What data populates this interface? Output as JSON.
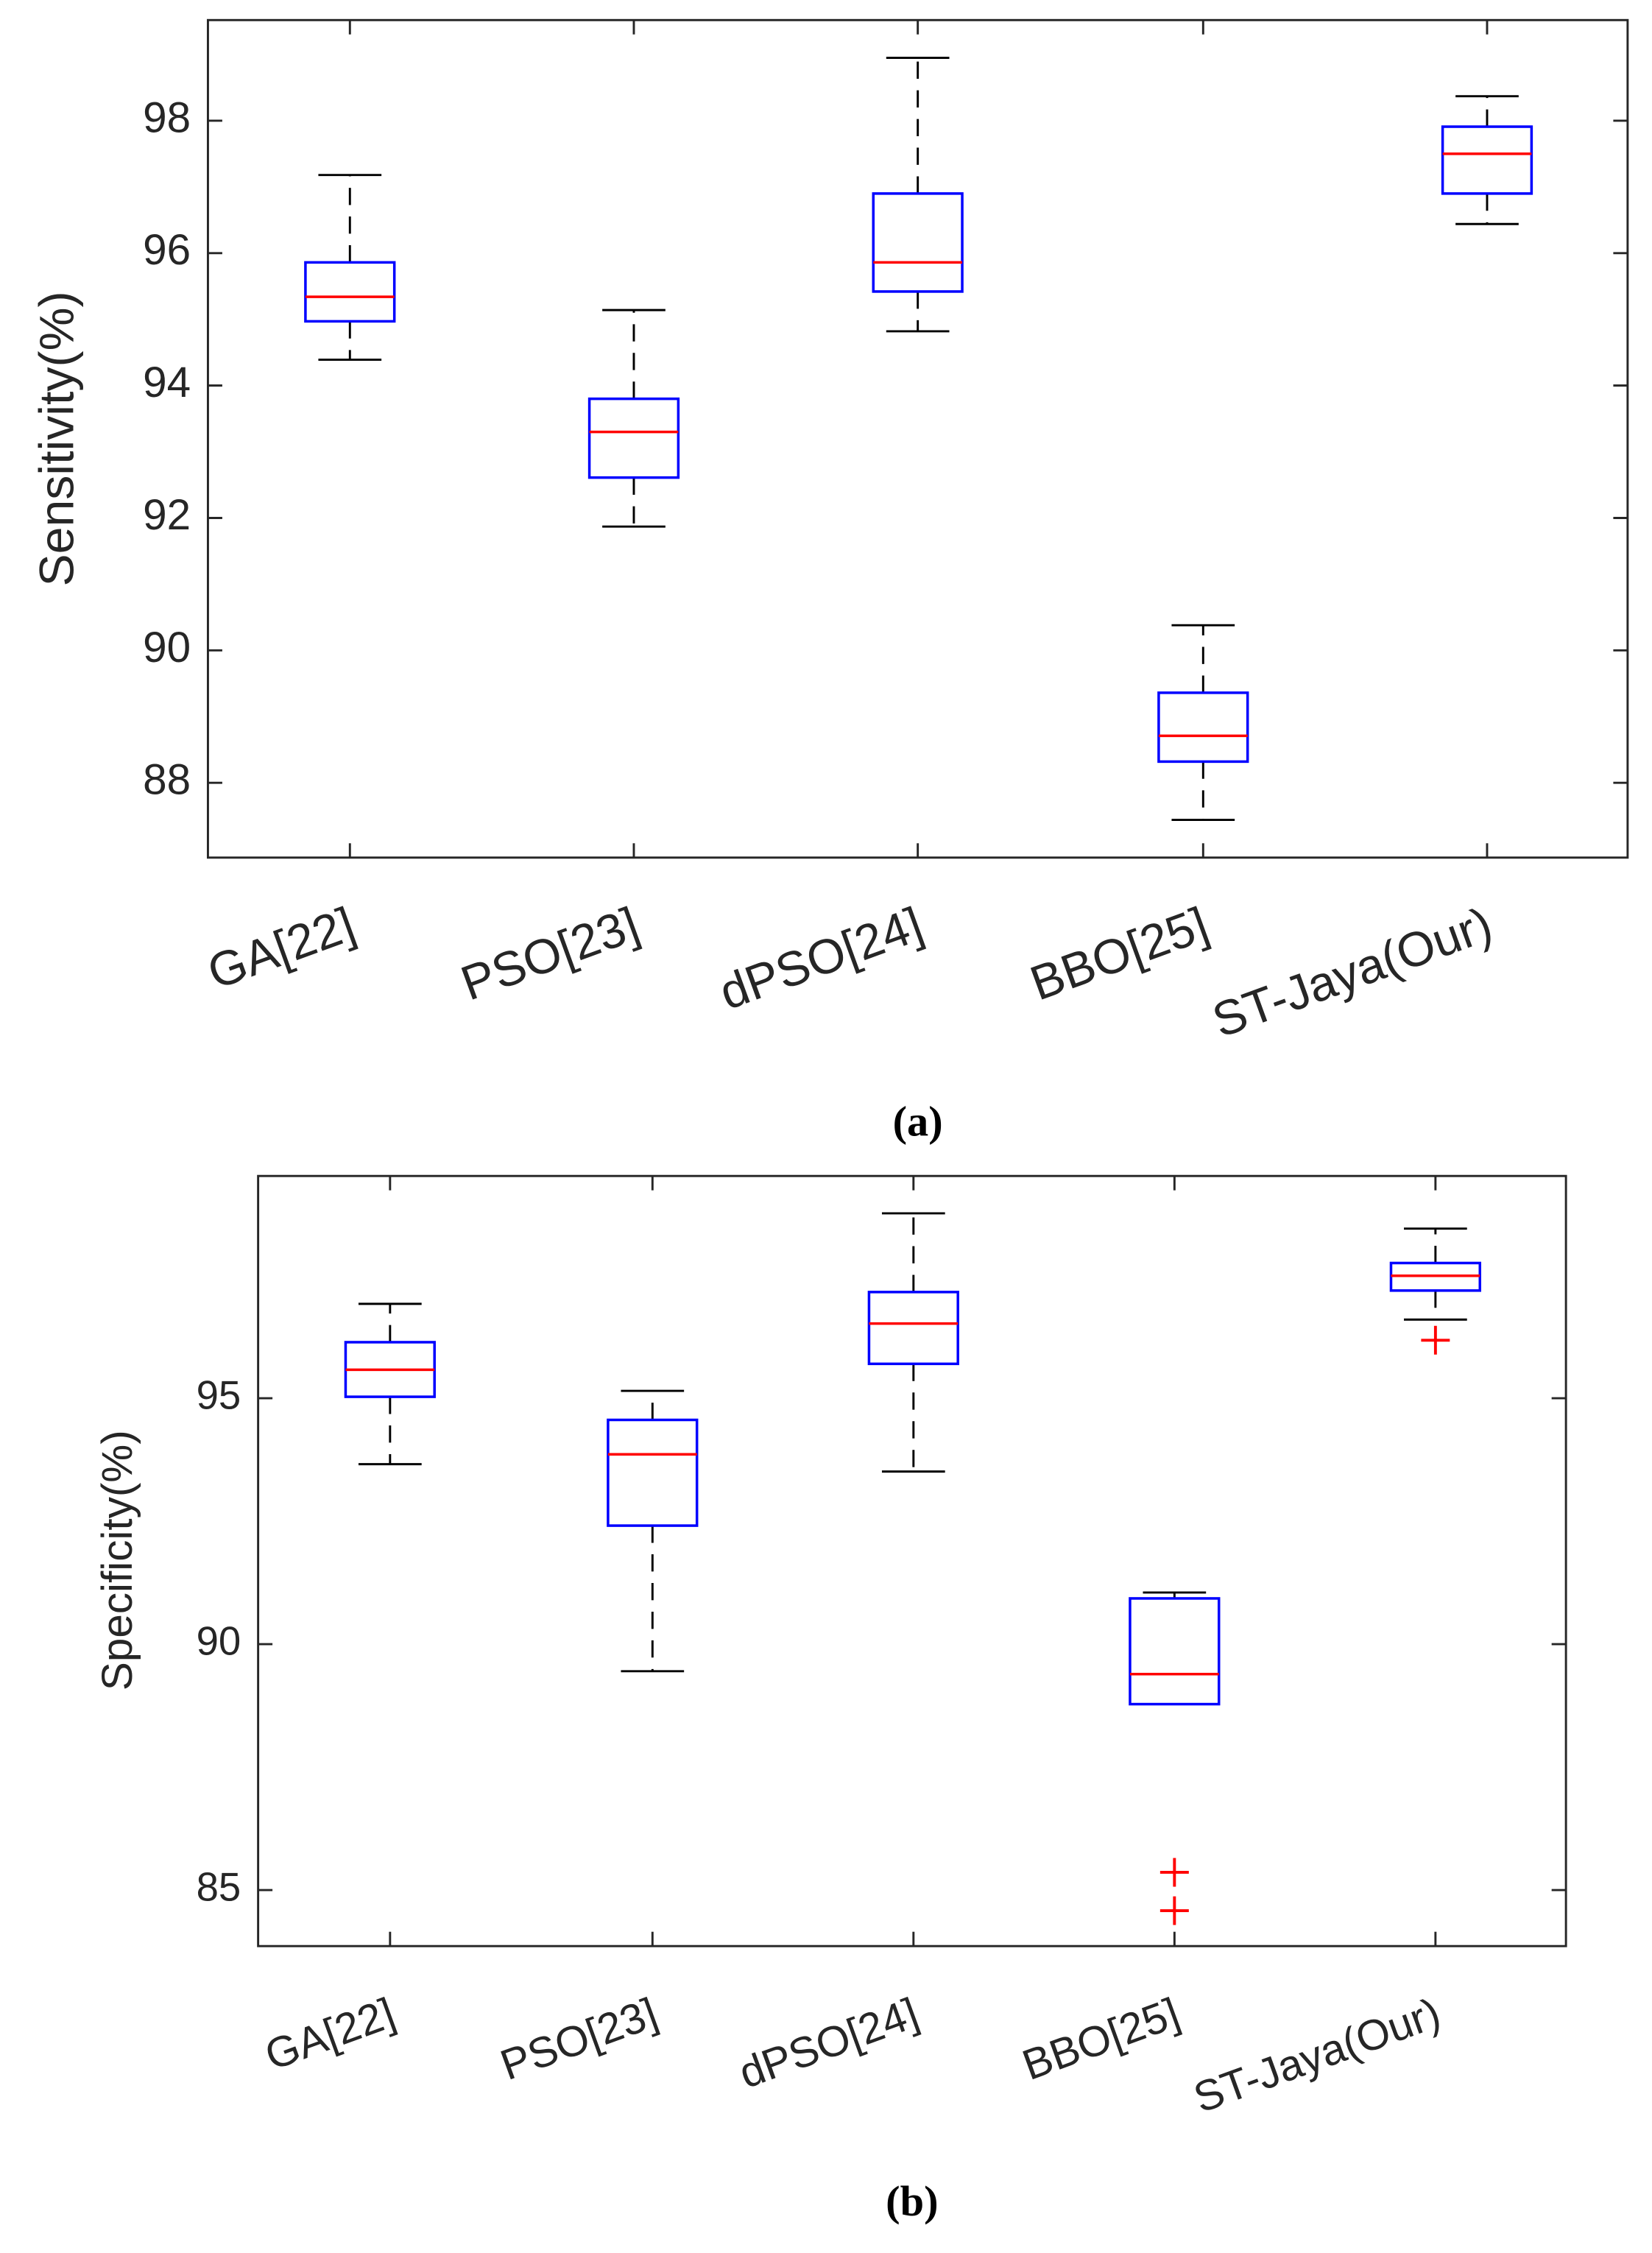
{
  "chart_data": [
    {
      "type": "box",
      "ylabel": "Sensitivity(%)",
      "caption": "(a)",
      "categories": [
        "GA[22]",
        "PSO[23]",
        "dPSO[24]",
        "BBO[25]",
        "ST-Jaya(Our)"
      ],
      "boxes": [
        {
          "whisker_low": 94.39,
          "q1": 94.97,
          "median": 95.34,
          "q3": 95.86,
          "whisker_high": 97.18,
          "outliers": []
        },
        {
          "whisker_low": 91.87,
          "q1": 92.61,
          "median": 93.3,
          "q3": 93.8,
          "whisker_high": 95.14,
          "outliers": []
        },
        {
          "whisker_low": 94.82,
          "q1": 95.42,
          "median": 95.86,
          "q3": 96.9,
          "whisker_high": 98.95,
          "outliers": []
        },
        {
          "whisker_low": 87.44,
          "q1": 88.32,
          "median": 88.71,
          "q3": 89.36,
          "whisker_high": 90.38,
          "outliers": []
        },
        {
          "whisker_low": 96.44,
          "q1": 96.9,
          "median": 97.5,
          "q3": 97.91,
          "whisker_high": 98.37,
          "outliers": []
        }
      ],
      "ylim": [
        86.87,
        99.52
      ],
      "yticks": [
        88,
        90,
        92,
        94,
        96,
        98
      ],
      "box_color": "#0000ff",
      "median_color": "#ff0000",
      "whisker_color": "#000000",
      "outlier_color": "#ff0000"
    },
    {
      "type": "box",
      "ylabel": "Specificity(%)",
      "caption": "(b)",
      "categories": [
        "GA[22]",
        "PSO[23]",
        "dPSO[24]",
        "BBO[25]",
        "ST-Jaya(Our)"
      ],
      "boxes": [
        {
          "whisker_low": 93.66,
          "q1": 95.03,
          "median": 95.58,
          "q3": 96.14,
          "whisker_high": 96.92,
          "outliers": []
        },
        {
          "whisker_low": 89.45,
          "q1": 92.41,
          "median": 93.86,
          "q3": 94.56,
          "whisker_high": 95.15,
          "outliers": []
        },
        {
          "whisker_low": 93.51,
          "q1": 95.7,
          "median": 96.52,
          "q3": 97.16,
          "whisker_high": 98.76,
          "outliers": []
        },
        {
          "whisker_low": 88.78,
          "q1": 88.78,
          "median": 89.39,
          "q3": 90.93,
          "whisker_high": 91.05,
          "outliers": [
            85.36,
            84.58
          ]
        },
        {
          "whisker_low": 96.6,
          "q1": 97.19,
          "median": 97.49,
          "q3": 97.75,
          "whisker_high": 98.45,
          "outliers": [
            96.18
          ]
        }
      ],
      "ylim": [
        83.86,
        99.52
      ],
      "yticks": [
        85,
        90,
        95
      ],
      "box_color": "#0000ff",
      "median_color": "#ff0000",
      "whisker_color": "#000000",
      "outlier_color": "#ff0000"
    }
  ]
}
